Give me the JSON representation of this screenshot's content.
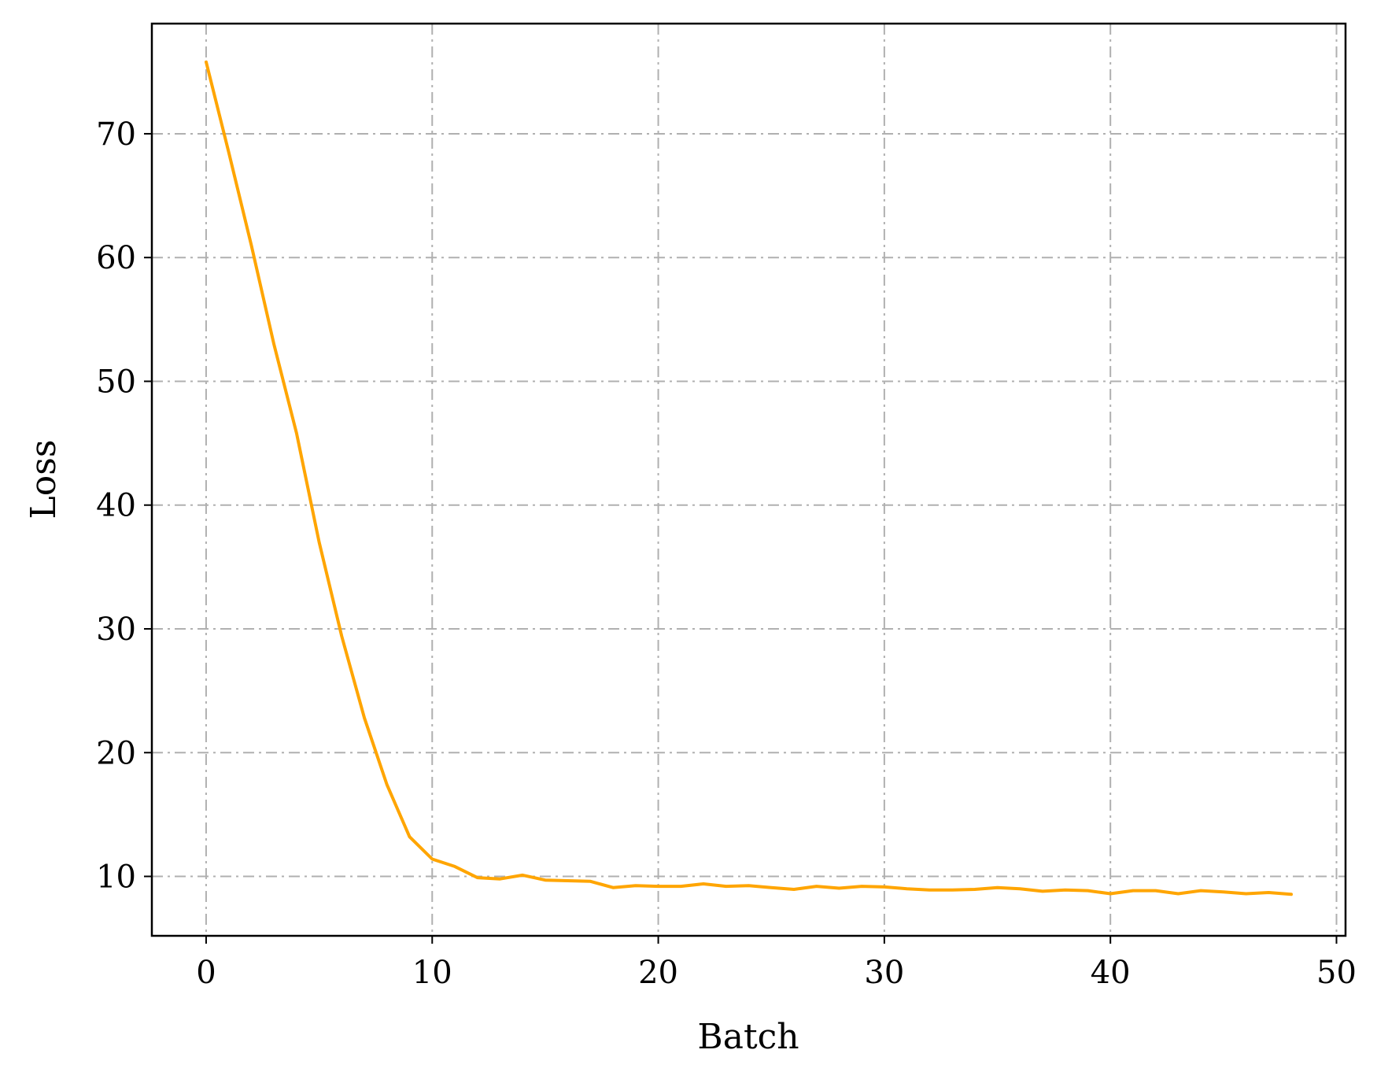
{
  "chart_data": {
    "type": "line",
    "title": "",
    "xlabel": "Batch",
    "ylabel": "Loss",
    "xlim": [
      -2.4,
      50.4
    ],
    "ylim": [
      5.2,
      78.9
    ],
    "xticks": [
      0,
      10,
      20,
      30,
      40,
      50
    ],
    "yticks": [
      10,
      20,
      30,
      40,
      50,
      60,
      70
    ],
    "xtick_labels": [
      "0",
      "10",
      "20",
      "30",
      "40",
      "50"
    ],
    "ytick_labels": [
      "10",
      "20",
      "30",
      "40",
      "50",
      "60",
      "70"
    ],
    "grid": true,
    "series": [
      {
        "name": "Loss",
        "color": "#FFA500",
        "x": [
          0,
          1,
          2,
          3,
          4,
          5,
          6,
          7,
          8,
          9,
          10,
          11,
          12,
          13,
          14,
          15,
          16,
          17,
          18,
          19,
          20,
          21,
          22,
          23,
          24,
          25,
          26,
          27,
          28,
          29,
          30,
          31,
          32,
          33,
          34,
          35,
          36,
          37,
          38,
          39,
          40,
          41,
          42,
          43,
          44,
          45,
          46,
          47,
          48
        ],
        "values": [
          75.8,
          68.5,
          61.0,
          53.0,
          45.8,
          37.0,
          29.4,
          22.8,
          17.4,
          13.2,
          11.4,
          10.8,
          9.9,
          9.8,
          10.1,
          9.7,
          9.65,
          9.6,
          9.1,
          9.25,
          9.2,
          9.2,
          9.4,
          9.2,
          9.25,
          9.1,
          8.95,
          9.2,
          9.05,
          9.2,
          9.15,
          9.0,
          8.9,
          8.9,
          8.95,
          9.1,
          9.0,
          8.8,
          8.9,
          8.85,
          8.6,
          8.85,
          8.85,
          8.6,
          8.85,
          8.75,
          8.6,
          8.7,
          8.55
        ]
      }
    ]
  }
}
